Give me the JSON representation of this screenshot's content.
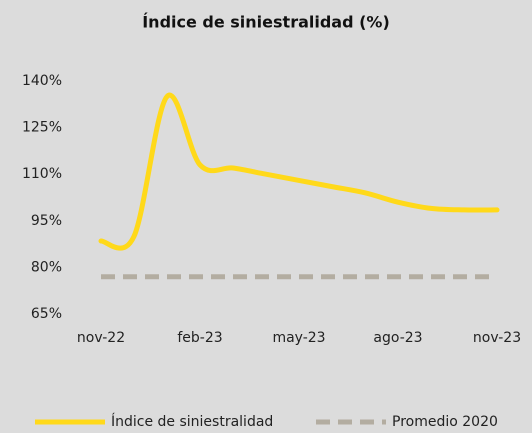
{
  "chart_data": {
    "type": "line",
    "title": "Índice de siniestralidad (%)",
    "categories": [
      "nov-22",
      null,
      null,
      "feb-23",
      null,
      null,
      "may-23",
      null,
      null,
      "ago-23",
      null,
      null,
      "nov-23"
    ],
    "series": [
      {
        "name": "Índice de siniestralidad",
        "color": "#ffd91a",
        "values": [
          88.5,
          90,
          135,
          113,
          112,
          110,
          108,
          106,
          104,
          101,
          99,
          98.5,
          98.5
        ]
      },
      {
        "name": "Promedio 2020",
        "color": "#b3ada1",
        "dashed": true,
        "values": [
          77,
          77,
          77,
          77,
          77,
          77,
          77,
          77,
          77,
          77,
          77,
          77,
          77
        ]
      }
    ],
    "ylim": [
      65,
      140
    ],
    "yticks": [
      {
        "value": 65,
        "label": "65%"
      },
      {
        "value": 80,
        "label": "80%"
      },
      {
        "value": 95,
        "label": "95%"
      },
      {
        "value": 110,
        "label": "110%"
      },
      {
        "value": 125,
        "label": "125%"
      },
      {
        "value": 140,
        "label": "140%"
      }
    ],
    "grid": false,
    "legend": "bottom"
  }
}
